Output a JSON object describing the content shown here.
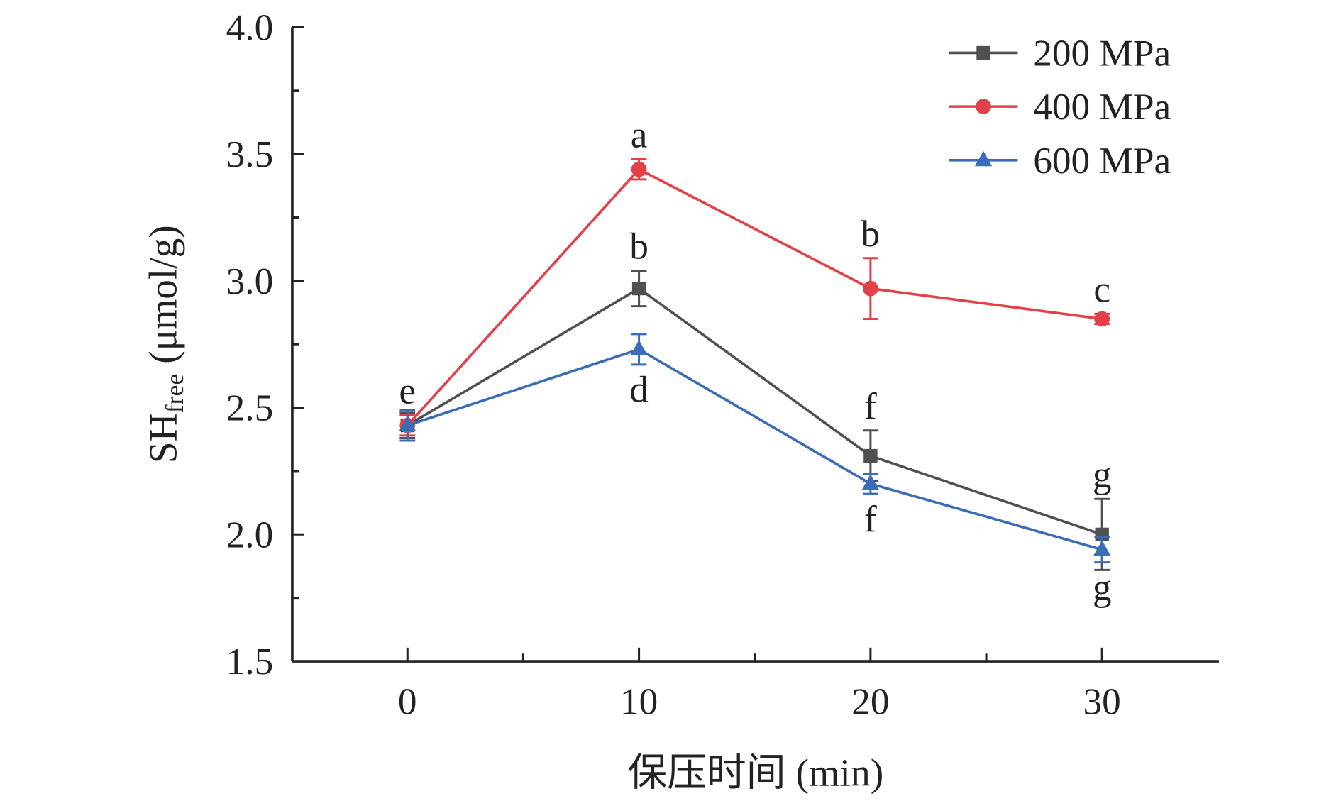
{
  "chart_data": {
    "type": "line",
    "title": "",
    "xlabel": "保压时间 (min)",
    "ylabel_main": "SH",
    "ylabel_sub": "free",
    "ylabel_unit": " (μmol/g)",
    "x": [
      0,
      10,
      20,
      30
    ],
    "xlim": [
      -5,
      35
    ],
    "ylim": [
      1.5,
      4.0
    ],
    "xticks": [
      "0",
      "10",
      "20",
      "30"
    ],
    "yticks": [
      "1.5",
      "2.0",
      "2.5",
      "3.0",
      "3.5",
      "4.0"
    ],
    "grid": false,
    "legend_position": "top-right",
    "series": [
      {
        "name": "200 MPa",
        "color": "#505050",
        "marker": "square",
        "values": [
          2.43,
          2.97,
          2.31,
          2.0
        ],
        "errors": [
          0.05,
          0.07,
          0.1,
          0.14
        ],
        "letters": [
          "",
          "b",
          "f",
          "g"
        ],
        "letter_pos": [
          "",
          "above",
          "above",
          "above"
        ]
      },
      {
        "name": "400 MPa",
        "color": "#e3414a",
        "marker": "circle",
        "values": [
          2.43,
          3.44,
          2.97,
          2.85
        ],
        "errors": [
          0.04,
          0.04,
          0.12,
          0.02
        ],
        "letters": [
          "e",
          "a",
          "b",
          "c"
        ],
        "letter_pos": [
          "above",
          "above",
          "above",
          "above"
        ]
      },
      {
        "name": "600 MPa",
        "color": "#3a6db5",
        "marker": "triangle",
        "values": [
          2.43,
          2.73,
          2.2,
          1.94
        ],
        "errors": [
          0.06,
          0.06,
          0.04,
          0.05
        ],
        "letters": [
          "",
          "d",
          "f",
          "g"
        ],
        "letter_pos": [
          "",
          "below",
          "below",
          "below"
        ]
      }
    ]
  }
}
